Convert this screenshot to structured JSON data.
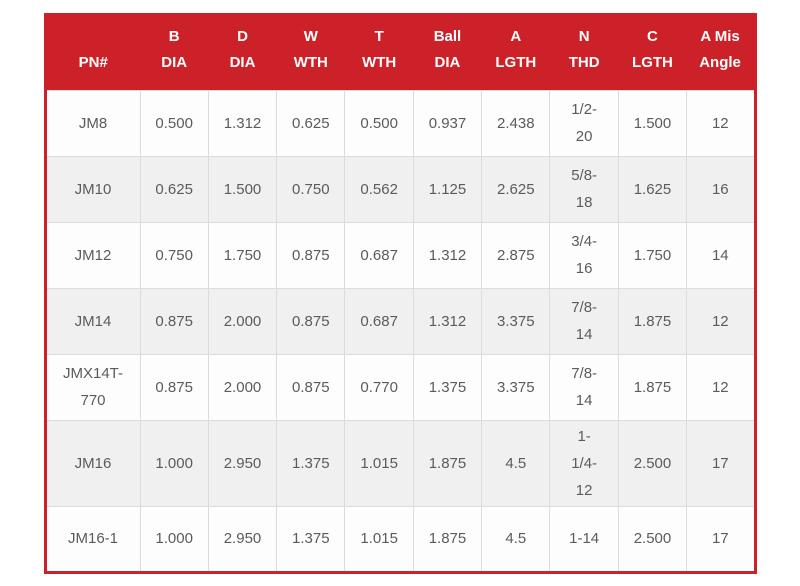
{
  "colors": {
    "header_bg": "#cc2128",
    "header_text": "#ffffff",
    "table_border": "#cc2128",
    "grid_line": "#dcdcdc",
    "row_bg": "#fdfdfd",
    "row_alt_bg": "#f0f0f0",
    "cell_text": "#5a5b5d"
  },
  "table": {
    "headers": [
      "PN#",
      "B\nDIA",
      "D\nDIA",
      "W\nWTH",
      "T\nWTH",
      "Ball\nDIA",
      "A\nLGTH",
      "N\nTHD",
      "C\nLGTH",
      "A Mis\nAngle"
    ],
    "rows": [
      [
        "JM8",
        "0.500",
        "1.312",
        "0.625",
        "0.500",
        "0.937",
        "2.438",
        "1/2-\n20",
        "1.500",
        "12"
      ],
      [
        "JM10",
        "0.625",
        "1.500",
        "0.750",
        "0.562",
        "1.125",
        "2.625",
        "5/8-\n18",
        "1.625",
        "16"
      ],
      [
        "JM12",
        "0.750",
        "1.750",
        "0.875",
        "0.687",
        "1.312",
        "2.875",
        "3/4-\n16",
        "1.750",
        "14"
      ],
      [
        "JM14",
        "0.875",
        "2.000",
        "0.875",
        "0.687",
        "1.312",
        "3.375",
        "7/8-\n14",
        "1.875",
        "12"
      ],
      [
        "JMX14T-\n770",
        "0.875",
        "2.000",
        "0.875",
        "0.770",
        "1.375",
        "3.375",
        "7/8-\n14",
        "1.875",
        "12"
      ],
      [
        "JM16",
        "1.000",
        "2.950",
        "1.375",
        "1.015",
        "1.875",
        "4.5",
        "1-\n1/4-\n12",
        "2.500",
        "17"
      ],
      [
        "JM16-1",
        "1.000",
        "2.950",
        "1.375",
        "1.015",
        "1.875",
        "4.5",
        "1-14",
        "2.500",
        "17"
      ]
    ]
  },
  "chart_data": {
    "type": "table",
    "title": "",
    "columns": [
      "PN#",
      "B DIA",
      "D DIA",
      "W WTH",
      "T WTH",
      "Ball DIA",
      "A LGTH",
      "N THD",
      "C LGTH",
      "A Mis Angle"
    ],
    "rows": [
      [
        "JM8",
        0.5,
        1.312,
        0.625,
        0.5,
        0.937,
        2.438,
        "1/2-20",
        1.5,
        12
      ],
      [
        "JM10",
        0.625,
        1.5,
        0.75,
        0.562,
        1.125,
        2.625,
        "5/8-18",
        1.625,
        16
      ],
      [
        "JM12",
        0.75,
        1.75,
        0.875,
        0.687,
        1.312,
        2.875,
        "3/4-16",
        1.75,
        14
      ],
      [
        "JM14",
        0.875,
        2.0,
        0.875,
        0.687,
        1.312,
        3.375,
        "7/8-14",
        1.875,
        12
      ],
      [
        "JMX14T-770",
        0.875,
        2.0,
        0.875,
        0.77,
        1.375,
        3.375,
        "7/8-14",
        1.875,
        12
      ],
      [
        "JM16",
        1.0,
        2.95,
        1.375,
        1.015,
        1.875,
        4.5,
        "1-1/4-12",
        2.5,
        17
      ],
      [
        "JM16-1",
        1.0,
        2.95,
        1.375,
        1.015,
        1.875,
        4.5,
        "1-14",
        2.5,
        17
      ]
    ]
  }
}
